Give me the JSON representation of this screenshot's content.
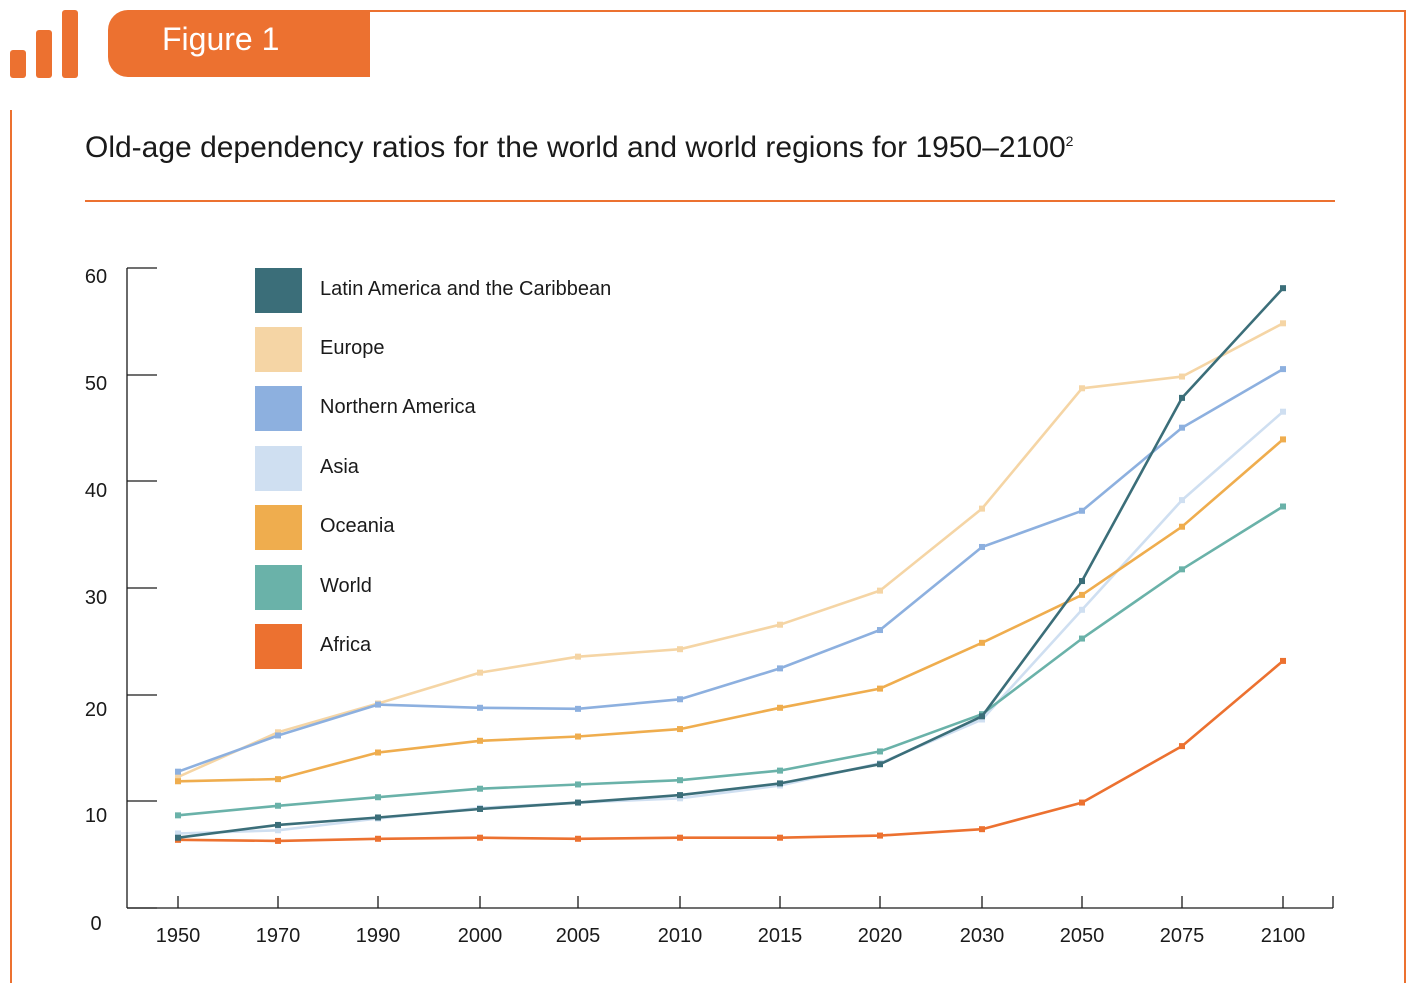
{
  "figure": {
    "label": "Figure 1",
    "icon": "bar-chart-icon",
    "accent": "#ec7130"
  },
  "title": {
    "text": "Old-age dependency ratios for the world and world regions for 1950–2100",
    "footnote": "2"
  },
  "chart_data": {
    "type": "line",
    "title": "Old-age dependency ratios for the world and world regions for 1950–2100",
    "xlabel": "",
    "ylabel": "",
    "categories": [
      "1950",
      "1970",
      "1990",
      "2000",
      "2005",
      "2010",
      "2015",
      "2020",
      "2030",
      "2050",
      "2075",
      "2100"
    ],
    "y_ticks": [
      "60",
      "50",
      "40",
      "30",
      "20",
      "10",
      "0"
    ],
    "legend_position": "top-left",
    "grid": false,
    "series": [
      {
        "name": "Latin America and the Caribbean",
        "color": "#3b6e79",
        "values": [
          6.6,
          7.8,
          8.5,
          9.3,
          9.9,
          10.6,
          11.7,
          13.5,
          18.0,
          30.7,
          47.9,
          58.2
        ]
      },
      {
        "name": "Europe",
        "color": "#f5d5a5",
        "values": [
          12.3,
          16.5,
          19.2,
          22.1,
          23.6,
          24.3,
          26.6,
          29.8,
          37.5,
          48.8,
          49.9,
          54.9
        ]
      },
      {
        "name": "Northern America",
        "color": "#8db0df",
        "values": [
          12.8,
          16.2,
          19.1,
          18.8,
          18.7,
          19.6,
          22.5,
          26.1,
          33.9,
          37.3,
          45.1,
          50.6
        ]
      },
      {
        "name": "Asia",
        "color": "#cfdff1",
        "values": [
          7.0,
          7.3,
          8.4,
          9.4,
          9.9,
          10.3,
          11.5,
          13.6,
          17.7,
          28.0,
          38.3,
          46.6
        ]
      },
      {
        "name": "Oceania",
        "color": "#efad4e",
        "values": [
          11.9,
          12.1,
          14.6,
          15.7,
          16.1,
          16.8,
          18.8,
          20.6,
          24.9,
          29.4,
          35.8,
          44.0
        ]
      },
      {
        "name": "World",
        "color": "#6ab2a9",
        "values": [
          8.7,
          9.6,
          10.4,
          11.2,
          11.6,
          12.0,
          12.9,
          14.7,
          18.2,
          25.3,
          31.8,
          37.7
        ]
      },
      {
        "name": "Africa",
        "color": "#ec7130",
        "values": [
          6.4,
          6.3,
          6.5,
          6.6,
          6.5,
          6.6,
          6.6,
          6.8,
          7.4,
          9.9,
          15.2,
          23.2
        ]
      }
    ]
  }
}
